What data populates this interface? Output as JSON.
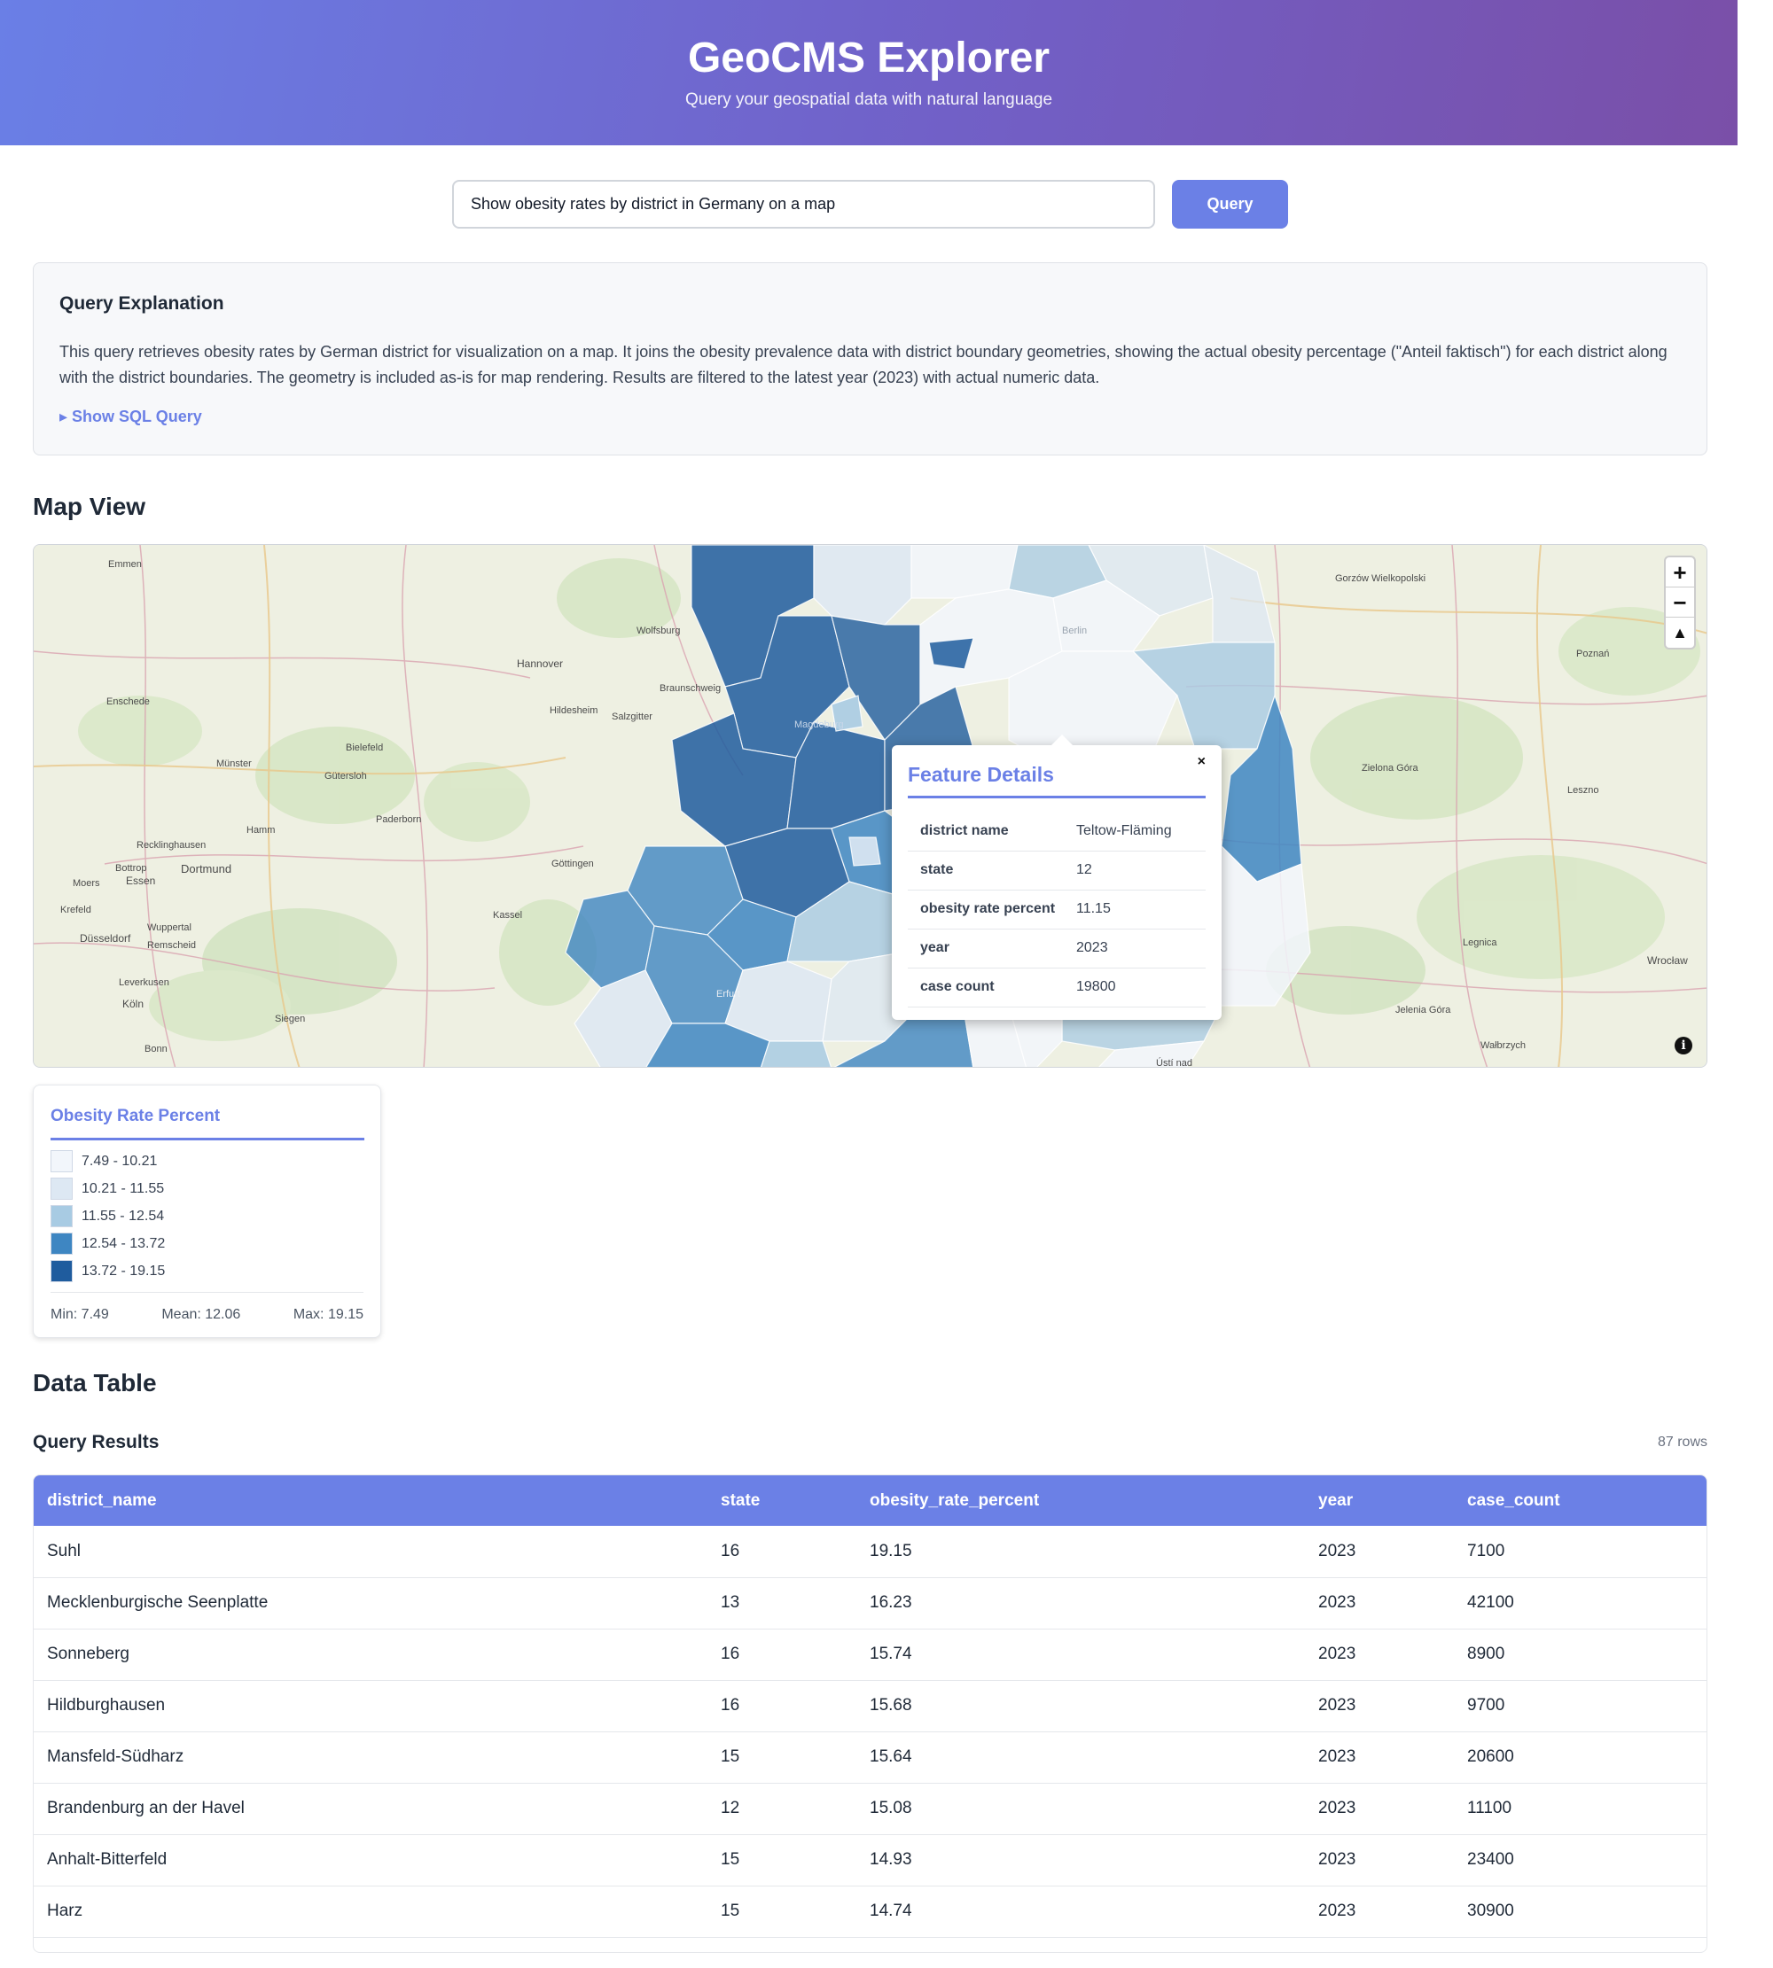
{
  "header": {
    "title": "GeoCMS Explorer",
    "subtitle": "Query your geospatial data with natural language"
  },
  "search": {
    "value": "Show obesity rates by district in Germany on a map",
    "button_label": "Query"
  },
  "explanation": {
    "title": "Query Explanation",
    "text": "This query retrieves obesity rates by German district for visualization on a map. It joins the obesity prevalence data with district boundary geometries, showing the actual obesity percentage (\"Anteil faktisch\") for each district along with the district boundaries. The geometry is included as-is for map rendering. Results are filtered to the latest year (2023) with actual numeric data.",
    "toggle_label": "▸ Show SQL Query"
  },
  "map_section": {
    "title": "Map View"
  },
  "map": {
    "zoom_in": "+",
    "zoom_out": "−",
    "reset_north": "▲",
    "attribution": "i",
    "place_labels": [
      "Hannover",
      "Dortmund",
      "Essen",
      "Düsseldorf",
      "Köln",
      "Bielefeld",
      "Magdeburg",
      "Berlin",
      "Poznań",
      "Wrocław",
      "Kassel",
      "Göttingen",
      "Erfurt",
      "Münster",
      "Paderborn",
      "Hamm",
      "Wolfsburg",
      "Braunschweig",
      "Hildesheim",
      "Salzgitter",
      "Gütersloh",
      "Siegen",
      "Bonn",
      "Emmen",
      "Enschede",
      "Gorzów Wielkopolski",
      "Zielona Góra",
      "Leszno",
      "Legnica",
      "Jelenia Góra",
      "Wałbrzych",
      "Ústí nad",
      "Recklinghausen",
      "Wuppertal",
      "Remscheid",
      "Leverkusen",
      "Moers",
      "Krefeld",
      "Bottrop"
    ],
    "fill_colors": [
      "#f2f6fb",
      "#dde8f3",
      "#a8cbe3",
      "#3e86c2",
      "#1f5c9e"
    ]
  },
  "popup": {
    "title": "Feature Details",
    "close": "×",
    "rows": [
      {
        "key": "district name",
        "value": "Teltow-Fläming"
      },
      {
        "key": "state",
        "value": "12"
      },
      {
        "key": "obesity rate percent",
        "value": "11.15"
      },
      {
        "key": "year",
        "value": "2023"
      },
      {
        "key": "case count",
        "value": "19800"
      }
    ]
  },
  "legend": {
    "title": "Obesity Rate Percent",
    "items": [
      {
        "label": "7.49 - 10.21",
        "color": "#f2f6fb"
      },
      {
        "label": "10.21 - 11.55",
        "color": "#dde8f3"
      },
      {
        "label": "11.55 - 12.54",
        "color": "#a8cbe3"
      },
      {
        "label": "12.54 - 13.72",
        "color": "#3e86c2"
      },
      {
        "label": "13.72 - 19.15",
        "color": "#1f5c9e"
      }
    ],
    "min": "Min: 7.49",
    "mean": "Mean: 12.06",
    "max": "Max: 19.15"
  },
  "table_section": {
    "title": "Data Table",
    "results_title": "Query Results",
    "row_count": "87 rows"
  },
  "table": {
    "columns": [
      "district_name",
      "state",
      "obesity_rate_percent",
      "year",
      "case_count"
    ],
    "rows": [
      [
        "Suhl",
        "16",
        "19.15",
        "2023",
        "7100"
      ],
      [
        "Mecklenburgische Seenplatte",
        "13",
        "16.23",
        "2023",
        "42100"
      ],
      [
        "Sonneberg",
        "16",
        "15.74",
        "2023",
        "8900"
      ],
      [
        "Hildburghausen",
        "16",
        "15.68",
        "2023",
        "9700"
      ],
      [
        "Mansfeld-Südharz",
        "15",
        "15.64",
        "2023",
        "20600"
      ],
      [
        "Brandenburg an der Havel",
        "12",
        "15.08",
        "2023",
        "11100"
      ],
      [
        "Anhalt-Bitterfeld",
        "15",
        "14.93",
        "2023",
        "23400"
      ],
      [
        "Harz",
        "15",
        "14.74",
        "2023",
        "30900"
      ]
    ]
  }
}
